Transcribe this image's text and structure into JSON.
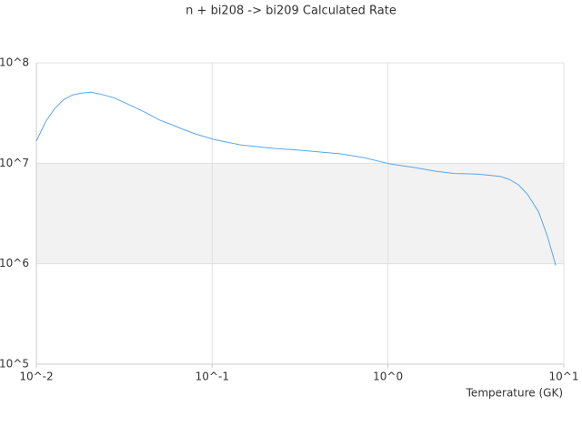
{
  "chart_data": {
    "type": "line",
    "title": "n + bi208 -> bi209 Calculated Rate",
    "x_label": "Temperature (GK)",
    "log_x": true,
    "log_y": true,
    "grid": true,
    "xlim": [
      0.01,
      10
    ],
    "xticks": [
      {
        "value": 0.01,
        "label": "10^-2"
      },
      {
        "value": 0.1,
        "label": "10^-1"
      },
      {
        "value": 1,
        "label": "10^0"
      },
      {
        "value": 10,
        "label": "10^1"
      }
    ],
    "ylim": [
      100000,
      100000000
    ],
    "yticks": [
      {
        "value": 100000,
        "label": "10^5"
      },
      {
        "value": 1000000,
        "label": "10^6"
      },
      {
        "value": 10000000,
        "label": "10^7"
      },
      {
        "value": 100000000,
        "label": "10^8"
      }
    ],
    "series": [
      {
        "color": "#5aa7e6",
        "x": [
          0.01,
          0.0113,
          0.0127,
          0.0143,
          0.0161,
          0.0182,
          0.0204,
          0.023,
          0.0275,
          0.0329,
          0.0418,
          0.05,
          0.0597,
          0.0673,
          0.0804,
          0.102,
          0.146,
          0.221,
          0.316,
          0.54,
          0.73,
          1.04,
          1.4,
          1.89,
          2.4,
          3.23,
          4.35,
          4.9,
          5.52,
          6.22,
          7.18,
          8.08,
          9.0
        ],
        "values": [
          16600000,
          26000000,
          35000000,
          43000000,
          48000000,
          50000000,
          51000000,
          49000000,
          45000000,
          39000000,
          32000000,
          27000000,
          24000000,
          22000000,
          19600000,
          17300000,
          15200000,
          14100000,
          13500000,
          12400000,
          11400000,
          9800000,
          9100000,
          8300000,
          7900000,
          7800000,
          7400000,
          6900000,
          6100000,
          4900000,
          3300000,
          1860000,
          960000
        ]
      }
    ]
  }
}
